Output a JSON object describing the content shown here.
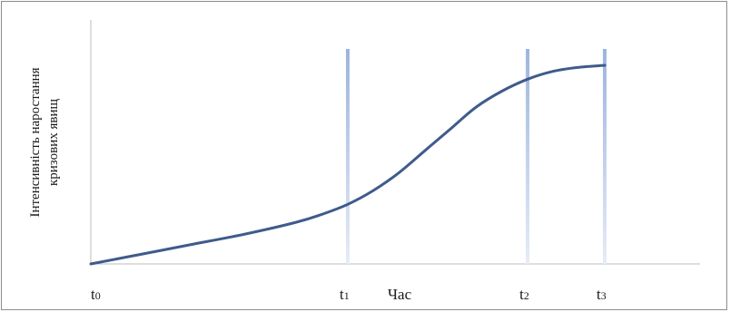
{
  "chart_data": {
    "type": "line",
    "ylabel_line1": "Інтенсивність наростання",
    "ylabel_line2": "кризових явищ",
    "xlabel": "Час",
    "series": [
      {
        "x": [
          0,
          0.1,
          0.2,
          0.3,
          0.4,
          0.45,
          0.5,
          0.55,
          0.6,
          0.65,
          0.7,
          0.75,
          0.8,
          0.85,
          0.9,
          0.95,
          1.0
        ],
        "values": [
          0,
          0.05,
          0.1,
          0.15,
          0.21,
          0.25,
          0.3,
          0.37,
          0.46,
          0.57,
          0.68,
          0.79,
          0.87,
          0.93,
          0.97,
          0.99,
          1.0
        ]
      }
    ],
    "markers": [
      {
        "label": "t0",
        "x": 0
      },
      {
        "label": "t1",
        "x": 0.5
      },
      {
        "label": "t2",
        "x": 0.85
      },
      {
        "label": "t3",
        "x": 1.0
      }
    ],
    "colors": {
      "curve": "#3f5b8c",
      "marker_top": "#9db4df",
      "marker_bottom": "#e6ecf7",
      "axis": "#bdbdbd"
    }
  }
}
